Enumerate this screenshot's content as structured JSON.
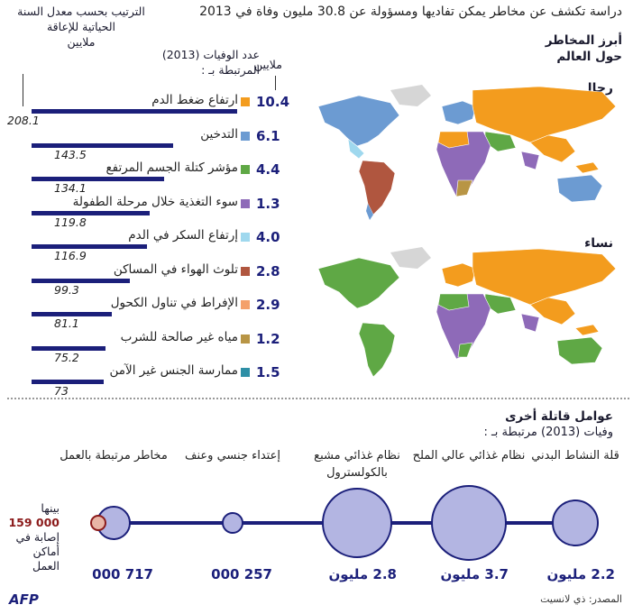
{
  "title": "دراسة تكشف عن مخاطر يمكن تفاديها ومسؤولة عن 30.8 مليون وفاة في 2013",
  "headers": {
    "deaths_label": "عدد الوفيات (2013) المرتبطة بـ :",
    "dalys_label": "الترتيب بحسب معدل السنة الحياتية للإعاقة",
    "dalys_unit": "ملايين",
    "deaths_unit": "ملايين"
  },
  "risks": [
    {
      "label": "ارتفاع ضغط الدم",
      "deaths": "10.4",
      "dalys": "208.1",
      "color": "#f39c1e"
    },
    {
      "label": "التدخين",
      "deaths": "6.1",
      "dalys": "143.5",
      "color": "#6c9bd2"
    },
    {
      "label": "مؤشر كتلة الجسم المرتفع",
      "deaths": "4.4",
      "dalys": "134.1",
      "color": "#5fa845"
    },
    {
      "label": "سوء التغذية خلال مرحلة الطفولة",
      "deaths": "1.3",
      "dalys": "119.8",
      "color": "#8e6ab8"
    },
    {
      "label": "إرتفاع السكر في الدم",
      "deaths": "4.0",
      "dalys": "116.9",
      "color": "#9fd8ee"
    },
    {
      "label": "تلوث الهواء في المساكن",
      "deaths": "2.8",
      "dalys": "99.3",
      "color": "#b0563f"
    },
    {
      "label": "الإفراط في تناول الكحول",
      "deaths": "2.9",
      "dalys": "81.1",
      "color": "#f4a06a"
    },
    {
      "label": "مياه غير صالحة للشرب",
      "deaths": "1.2",
      "dalys": "75.2",
      "color": "#b89545"
    },
    {
      "label": "ممارسة الجنس غير الآمن",
      "deaths": "1.5",
      "dalys": "73",
      "color": "#2e8fa6"
    }
  ],
  "map": {
    "title": "أبرز المخاطر حول العالم",
    "men": "رجال",
    "women": "نساء"
  },
  "other": {
    "title": "عوامل قاتلة أخرى",
    "subtitle": "وفيات (2013) مرتبطة بـ :",
    "factors": [
      {
        "label": "قلة النشاط البدني",
        "value": "2.2 مليون"
      },
      {
        "label": "نظام غذائي عالي الملح",
        "value": "3.7 مليون"
      },
      {
        "label": "نظام غذائي مشبع بالكولسترول",
        "value": "2.8 مليون"
      },
      {
        "label": "إعتداء جنسي وعنف",
        "value": "257 000"
      },
      {
        "label": "مخاطر مرتبطة بالعمل",
        "value": "717 000"
      }
    ],
    "work_note_pre": "بينها",
    "work_note_num": "159 000",
    "work_note_post": "إصابة في أماكن العمل"
  },
  "source": "المصدر: ذي لانسيت",
  "logo": "AFP"
}
